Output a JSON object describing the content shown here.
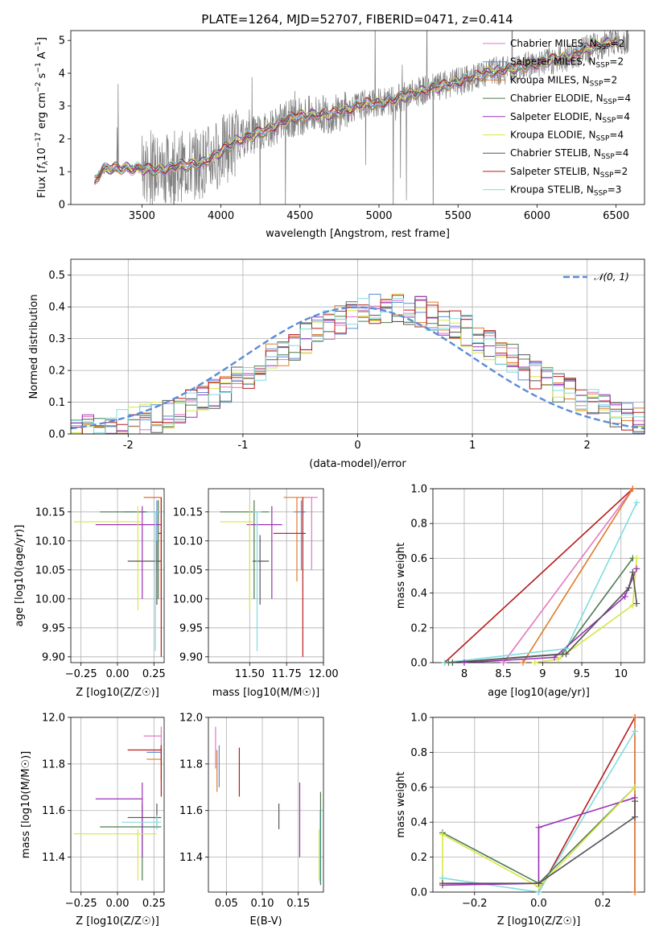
{
  "title": "PLATE=1264, MJD=52707, FIBERID=0471, z=0.414",
  "colors": {
    "Chabrier MILES": "#e377c2",
    "Salpeter MILES": "#5b8cd7",
    "Kroupa MILES": "#e07b28",
    "Chabrier ELODIE": "#4d7a52",
    "Salpeter ELODIE": "#9b30b8",
    "Kroupa ELODIE": "#d8e645",
    "Chabrier STELIB": "#555555",
    "Salpeter STELIB": "#b81c1c",
    "Kroupa STELIB": "#80dbe0",
    "data": "#808080",
    "gaussian": "#5b8cd7"
  },
  "chart_data": [
    {
      "id": "spectrum",
      "type": "line",
      "title": "PLATE=1264, MJD=52707, FIBERID=0471, z=0.414",
      "xlabel": "wavelength [Angstrom, rest frame]",
      "ylabel": "Flux [f_λ 10^-17 erg cm^-2 s^-1 A^-1]",
      "xlim": [
        3050,
        6680
      ],
      "ylim": [
        0,
        5.3
      ],
      "xticks": [
        3500,
        4000,
        4500,
        5000,
        5500,
        6000,
        6500
      ],
      "yticks": [
        0,
        1,
        2,
        3,
        4,
        5
      ],
      "legend_position": "top-right",
      "legend": [
        {
          "label": "Chabrier MILES, N",
          "sub": "SSP",
          "suffix": "=2",
          "color": "#e377c2"
        },
        {
          "label": "Salpeter MILES, N",
          "sub": "SSP",
          "suffix": "=2",
          "color": "#5b8cd7"
        },
        {
          "label": "Kroupa MILES, N",
          "sub": "SSP",
          "suffix": "=2",
          "color": "#e07b28"
        },
        {
          "label": "Chabrier ELODIE, N",
          "sub": "SSP",
          "suffix": "=4",
          "color": "#4d7a52"
        },
        {
          "label": "Salpeter ELODIE, N",
          "sub": "SSP",
          "suffix": "=4",
          "color": "#9b30b8"
        },
        {
          "label": "Kroupa ELODIE, N",
          "sub": "SSP",
          "suffix": "=4",
          "color": "#d8e645"
        },
        {
          "label": "Chabrier STELIB, N",
          "sub": "SSP",
          "suffix": "=4",
          "color": "#555555"
        },
        {
          "label": "Salpeter STELIB, N",
          "sub": "SSP",
          "suffix": "=2",
          "color": "#b81c1c"
        },
        {
          "label": "Kroupa STELIB, N",
          "sub": "SSP",
          "suffix": "=3",
          "color": "#80dbe0"
        }
      ],
      "model_continuum": {
        "x": [
          3200,
          3250,
          3300,
          3400,
          3500,
          3600,
          3700,
          3800,
          3900,
          4000,
          4100,
          4200,
          4300,
          4400,
          4500,
          4600,
          4700,
          4800,
          4900,
          5000,
          5100,
          5200,
          5300,
          5400,
          5500,
          5600,
          5700,
          5800,
          5900,
          6000,
          6100,
          6200,
          6300,
          6400,
          6500
        ],
        "y": [
          0.7,
          1.05,
          1.1,
          1.12,
          1.08,
          1.05,
          1.15,
          1.2,
          1.3,
          1.6,
          1.95,
          2.1,
          2.3,
          2.55,
          2.7,
          2.75,
          2.75,
          2.9,
          3.05,
          3.1,
          3.2,
          3.35,
          3.5,
          3.6,
          3.75,
          3.85,
          4.05,
          4.1,
          4.2,
          4.3,
          4.4,
          4.5,
          4.7,
          4.85,
          5.0
        ]
      }
    },
    {
      "id": "residuals",
      "type": "line",
      "xlabel": "(data-model)/error",
      "ylabel": "Normed distribution",
      "xlim": [
        -2.5,
        2.5
      ],
      "ylim": [
        0,
        0.55
      ],
      "xticks": [
        -2,
        -1,
        0,
        1,
        2
      ],
      "yticks": [
        0.0,
        0.1,
        0.2,
        0.3,
        0.4,
        0.5
      ],
      "legend_position": "top-right",
      "gaussian_label": "𝒩(0, 1)",
      "bins": [
        -2.5,
        2.5,
        50
      ]
    },
    {
      "id": "age_vs_Z",
      "type": "scatter",
      "xlabel": "Z [log10(Z/Z☉)]",
      "ylabel": "age  [log10(age/yr)]",
      "xlim": [
        -0.32,
        0.32
      ],
      "ylim": [
        9.89,
        10.19
      ],
      "xticks": [
        -0.25,
        0.0,
        0.25
      ],
      "xticklabels": [
        "−0.25",
        "0.00",
        "0.25"
      ],
      "yticks": [
        9.9,
        9.95,
        10.0,
        10.05,
        10.1,
        10.15
      ],
      "points": [
        {
          "model": "Chabrier MILES",
          "x": 0.3,
          "xerr": 0.0,
          "y": 10.175,
          "ylo": 10.175,
          "yhi": 10.175,
          "hx": [
            0.18,
            0.3
          ]
        },
        {
          "model": "Salpeter MILES",
          "x": 0.27,
          "y": 10.15,
          "hx": [
            0.05,
            0.3
          ],
          "ylo": 10.05,
          "yhi": 10.17
        },
        {
          "model": "Kroupa MILES",
          "x": 0.3,
          "y": 10.175,
          "hx": [
            0.18,
            0.3
          ],
          "ylo": 10.0,
          "yhi": 10.175
        },
        {
          "model": "Chabrier ELODIE",
          "x": 0.28,
          "y": 10.15,
          "hx": [
            -0.12,
            0.3
          ],
          "ylo": 10.0,
          "yhi": 10.17
        },
        {
          "model": "Salpeter ELODIE",
          "x": 0.17,
          "y": 10.128,
          "hx": [
            -0.15,
            0.3
          ],
          "ylo": 10.0,
          "yhi": 10.16
        },
        {
          "model": "Kroupa ELODIE",
          "x": 0.14,
          "y": 10.133,
          "hx": [
            -0.3,
            0.17
          ],
          "ylo": 9.98,
          "yhi": 10.16
        },
        {
          "model": "Chabrier STELIB",
          "x": 0.27,
          "y": 10.065,
          "hx": [
            0.07,
            0.3
          ],
          "ylo": 9.99,
          "yhi": 10.1
        },
        {
          "model": "Salpeter STELIB",
          "x": 0.3,
          "y": 10.113,
          "hx": [
            0.28,
            0.3
          ],
          "ylo": 9.9,
          "yhi": 10.175
        },
        {
          "model": "Kroupa STELIB",
          "x": 0.26,
          "y": 10.15,
          "hx": [
            0.2,
            0.3
          ],
          "ylo": 9.91,
          "yhi": 10.15
        }
      ]
    },
    {
      "id": "age_vs_mass",
      "type": "scatter",
      "xlabel": "mass [log10(M/M☉)]",
      "xlim": [
        11.22,
        12.0
      ],
      "ylim": [
        9.89,
        10.19
      ],
      "xticks": [
        11.5,
        11.75,
        12.0
      ],
      "xticklabels": [
        "11.50",
        "11.75",
        "12.00"
      ],
      "yticks": [
        9.9,
        9.95,
        10.0,
        10.05,
        10.1,
        10.15
      ],
      "points": [
        {
          "model": "Chabrier MILES",
          "x": 11.92,
          "y": 10.175,
          "hx": [
            11.88,
            11.96
          ],
          "ylo": 10.05,
          "yhi": 10.175
        },
        {
          "model": "Salpeter MILES",
          "x": 11.85,
          "y": 10.15,
          "hx": [
            11.8,
            11.88
          ],
          "ylo": 10.05,
          "yhi": 10.17
        },
        {
          "model": "Kroupa MILES",
          "x": 11.82,
          "y": 10.175,
          "hx": [
            11.73,
            11.88
          ],
          "ylo": 10.03,
          "yhi": 10.175
        },
        {
          "model": "Chabrier ELODIE",
          "x": 11.53,
          "y": 10.15,
          "hx": [
            11.3,
            11.63
          ],
          "ylo": 10.0,
          "yhi": 10.17
        },
        {
          "model": "Salpeter ELODIE",
          "x": 11.65,
          "y": 10.128,
          "hx": [
            11.48,
            11.72
          ],
          "ylo": 10.0,
          "yhi": 10.16
        },
        {
          "model": "Kroupa ELODIE",
          "x": 11.5,
          "y": 10.133,
          "hx": [
            11.3,
            11.53
          ],
          "ylo": 9.98,
          "yhi": 10.16
        },
        {
          "model": "Chabrier STELIB",
          "x": 11.57,
          "y": 10.065,
          "hx": [
            11.52,
            11.63
          ],
          "ylo": 9.99,
          "yhi": 10.11
        },
        {
          "model": "Salpeter STELIB",
          "x": 11.86,
          "y": 10.113,
          "hx": [
            11.66,
            11.88
          ],
          "ylo": 9.9,
          "yhi": 10.175
        },
        {
          "model": "Kroupa STELIB",
          "x": 11.55,
          "y": 10.15,
          "hx": [
            11.52,
            11.58
          ],
          "ylo": 9.91,
          "yhi": 10.15
        }
      ]
    },
    {
      "id": "mass_weight_vs_age",
      "type": "line",
      "xlabel": "age  [log10(age/yr)]",
      "ylabel": "mass weight",
      "xlim": [
        7.6,
        10.3
      ],
      "ylim": [
        0,
        1.0
      ],
      "xticks": [
        8.0,
        8.5,
        9.0,
        9.5,
        10.0
      ],
      "yticks": [
        0.0,
        0.2,
        0.4,
        0.6,
        0.8,
        1.0
      ],
      "series": [
        {
          "model": "Salpeter STELIB",
          "x": [
            7.75,
            10.15
          ],
          "y": [
            0.0,
            1.0
          ]
        },
        {
          "model": "Chabrier MILES",
          "x": [
            8.5,
            10.15
          ],
          "y": [
            0.0,
            1.0
          ]
        },
        {
          "model": "Kroupa MILES",
          "x": [
            8.75,
            10.15
          ],
          "y": [
            0.0,
            1.0
          ]
        },
        {
          "model": "Kroupa STELIB",
          "x": [
            7.75,
            9.3,
            10.2
          ],
          "y": [
            0.0,
            0.08,
            0.92
          ]
        },
        {
          "model": "Chabrier ELODIE",
          "x": [
            7.8,
            9.25,
            10.15
          ],
          "y": [
            0.0,
            0.05,
            0.6
          ]
        },
        {
          "model": "Salpeter ELODIE",
          "x": [
            8.0,
            9.15,
            10.05,
            10.2
          ],
          "y": [
            0.0,
            0.03,
            0.38,
            0.54
          ]
        },
        {
          "model": "Kroupa ELODIE",
          "x": [
            8.9,
            9.2,
            10.15,
            10.2
          ],
          "y": [
            0.0,
            0.02,
            0.33,
            0.6
          ]
        },
        {
          "model": "Chabrier STELIB",
          "x": [
            7.85,
            9.3,
            10.1,
            10.15,
            10.2
          ],
          "y": [
            0.0,
            0.05,
            0.43,
            0.52,
            0.34
          ]
        }
      ]
    },
    {
      "id": "mass_vs_Z",
      "type": "scatter",
      "xlabel": "Z [log10(Z/Z☉)]",
      "ylabel": "mass [log10(M/M☉)]",
      "xlim": [
        -0.32,
        0.32
      ],
      "ylim": [
        11.25,
        12.0
      ],
      "xticks": [
        -0.25,
        0.0,
        0.25
      ],
      "xticklabels": [
        "−0.25",
        "0.00",
        "0.25"
      ],
      "yticks": [
        11.4,
        11.6,
        11.8,
        12.0
      ],
      "points": [
        {
          "model": "Chabrier MILES",
          "x": 0.3,
          "y": 11.92,
          "hx": [
            0.18,
            0.3
          ],
          "ylo": 11.88,
          "yhi": 11.96
        },
        {
          "model": "Salpeter MILES",
          "x": 0.3,
          "y": 11.85,
          "hx": [
            0.2,
            0.3
          ],
          "ylo": 11.8,
          "yhi": 11.88
        },
        {
          "model": "Kroupa MILES",
          "x": 0.3,
          "y": 11.82,
          "hx": [
            0.2,
            0.3
          ],
          "ylo": 11.73,
          "yhi": 11.88
        },
        {
          "model": "Chabrier ELODIE",
          "x": 0.17,
          "y": 11.53,
          "hx": [
            -0.12,
            0.3
          ],
          "ylo": 11.3,
          "yhi": 11.63
        },
        {
          "model": "Salpeter ELODIE",
          "x": 0.17,
          "y": 11.65,
          "hx": [
            -0.15,
            0.17
          ],
          "ylo": 11.4,
          "yhi": 11.72
        },
        {
          "model": "Kroupa ELODIE",
          "x": 0.14,
          "y": 11.5,
          "hx": [
            -0.3,
            0.27
          ],
          "ylo": 11.3,
          "yhi": 11.52
        },
        {
          "model": "Chabrier STELIB",
          "x": 0.27,
          "y": 11.57,
          "hx": [
            0.07,
            0.3
          ],
          "ylo": 11.52,
          "yhi": 11.63
        },
        {
          "model": "Salpeter STELIB",
          "x": 0.3,
          "y": 11.86,
          "hx": [
            0.07,
            0.3
          ],
          "ylo": 11.66,
          "yhi": 11.88
        },
        {
          "model": "Kroupa STELIB",
          "x": 0.27,
          "y": 11.55,
          "hx": [
            0.03,
            0.3
          ],
          "ylo": 11.52,
          "yhi": 11.58
        }
      ]
    },
    {
      "id": "mass_vs_EBV",
      "type": "scatter",
      "xlabel": "E(B-V)",
      "xlim": [
        0.025,
        0.185
      ],
      "ylim": [
        11.25,
        12.0
      ],
      "xticks": [
        0.05,
        0.1,
        0.15
      ],
      "xticklabels": [
        "0.05",
        "0.10",
        "0.15"
      ],
      "yticks": [
        11.4,
        11.6,
        11.8,
        12.0
      ],
      "points": [
        {
          "model": "Chabrier MILES",
          "x": 0.035,
          "y": 11.92,
          "ylo": 11.78,
          "yhi": 11.96
        },
        {
          "model": "Salpeter MILES",
          "x": 0.04,
          "y": 11.85,
          "ylo": 11.7,
          "yhi": 11.88
        },
        {
          "model": "Kroupa MILES",
          "x": 0.037,
          "y": 11.82,
          "ylo": 11.68,
          "yhi": 11.86
        },
        {
          "model": "Salpeter STELIB",
          "x": 0.068,
          "y": 11.86,
          "ylo": 11.66,
          "yhi": 11.87
        },
        {
          "model": "Chabrier STELIB",
          "x": 0.123,
          "y": 11.57,
          "ylo": 11.52,
          "yhi": 11.63
        },
        {
          "model": "Salpeter ELODIE",
          "x": 0.152,
          "y": 11.65,
          "ylo": 11.4,
          "yhi": 11.72
        },
        {
          "model": "Kroupa ELODIE",
          "x": 0.179,
          "y": 11.5,
          "ylo": 11.3,
          "yhi": 11.52
        },
        {
          "model": "Chabrier ELODIE",
          "x": 0.181,
          "y": 11.53,
          "ylo": 11.28,
          "yhi": 11.68
        },
        {
          "model": "Kroupa STELIB",
          "x": 0.18,
          "y": 11.55,
          "ylo": 11.29,
          "yhi": 11.6
        }
      ]
    },
    {
      "id": "mass_weight_vs_Z",
      "type": "line",
      "xlabel": "Z [log10(Z/Z☉)]",
      "ylabel": "mass weight",
      "xlim": [
        -0.33,
        0.33
      ],
      "ylim": [
        0,
        1.0
      ],
      "xticks": [
        -0.2,
        0.0,
        0.2
      ],
      "xticklabels": [
        "−0.2",
        "0.0",
        "0.2"
      ],
      "yticks": [
        0.0,
        0.2,
        0.4,
        0.6,
        0.8,
        1.0
      ],
      "series": [
        {
          "model": "Salpeter STELIB",
          "x": [
            0.0,
            0.3
          ],
          "y": [
            0.0,
            1.0
          ]
        },
        {
          "model": "Chabrier MILES",
          "x": [
            0.3,
            0.3
          ],
          "y": [
            0.0,
            1.0
          ]
        },
        {
          "model": "Kroupa MILES",
          "x": [
            0.3,
            0.3
          ],
          "y": [
            0.0,
            1.0
          ]
        },
        {
          "model": "Kroupa STELIB",
          "x": [
            -0.3,
            0.0,
            0.3
          ],
          "y": [
            0.08,
            0.0,
            0.92
          ]
        },
        {
          "model": "Chabrier ELODIE",
          "x": [
            -0.3,
            0.0,
            0.3
          ],
          "y": [
            0.34,
            0.05,
            0.6
          ]
        },
        {
          "model": "Salpeter ELODIE",
          "x": [
            -0.3,
            0.0,
            0.0,
            0.3
          ],
          "y": [
            0.04,
            0.05,
            0.37,
            0.54
          ]
        },
        {
          "model": "Kroupa ELODIE",
          "x": [
            -0.3,
            -0.3,
            0.0,
            0.3
          ],
          "y": [
            0.05,
            0.33,
            0.03,
            0.6
          ]
        },
        {
          "model": "Chabrier STELIB",
          "x": [
            -0.3,
            0.0,
            0.3,
            0.3
          ],
          "y": [
            0.05,
            0.05,
            0.43,
            0.52
          ]
        }
      ]
    }
  ]
}
